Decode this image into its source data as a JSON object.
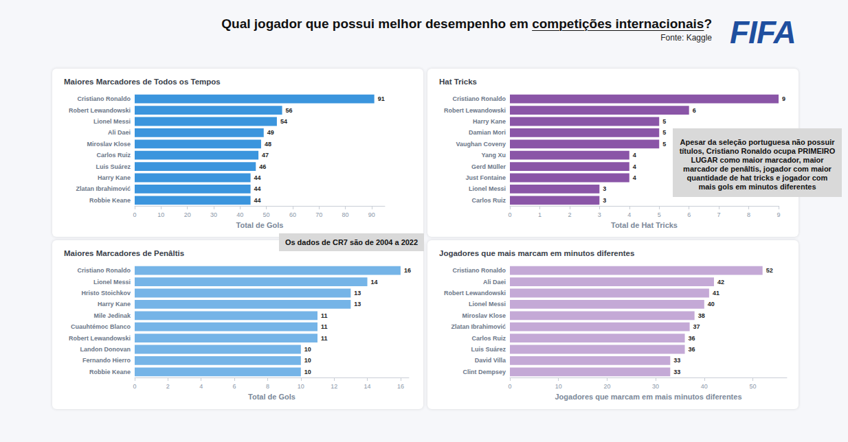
{
  "header": {
    "title": "Qual jogador que possui melhor desempenho em competições internacionais?",
    "underline": "competições internacionais",
    "source": "Fonte: Kaggle",
    "logo": "FIFA"
  },
  "chart_data": [
    {
      "type": "bar",
      "orientation": "horizontal",
      "title": "Maiores Marcadores de Todos os Tempos",
      "x_label": "Total de Gols",
      "categories": [
        "Cristiano Ronaldo",
        "Robert Lewandowski",
        "Lionel Messi",
        "Ali Daei",
        "Miroslav Klose",
        "Carlos Ruiz",
        "Luis Suárez",
        "Harry Kane",
        "Zlatan Ibrahimović",
        "Robbie Keane"
      ],
      "values": [
        91,
        56,
        54,
        49,
        48,
        47,
        46,
        44,
        44,
        44
      ],
      "color": "#3b95dd",
      "xlim": [
        0,
        95
      ],
      "xticks": [
        0,
        10,
        20,
        30,
        40,
        50,
        60,
        70,
        80,
        90
      ],
      "grid": false,
      "data_labels": true,
      "annotations": [
        "Os dados de CR7 são de 2004 a 2022"
      ]
    },
    {
      "type": "bar",
      "orientation": "horizontal",
      "title": "Hat Tricks",
      "x_label": "Total de Hat Tricks",
      "categories": [
        "Cristiano Ronaldo",
        "Robert Lewandowski",
        "Harry Kane",
        "Damian Mori",
        "Vaughan Coveny",
        "Yang Xu",
        "Gerd Müller",
        "Just Fontaine",
        "Lionel Messi",
        "Carlos Ruiz"
      ],
      "values": [
        9,
        6,
        5,
        5,
        5,
        4,
        4,
        4,
        3,
        3
      ],
      "color": "#8a55a7",
      "xlim": [
        0,
        9
      ],
      "xticks": [
        0,
        1,
        2,
        3,
        4,
        5,
        6,
        7,
        8,
        9
      ],
      "grid": false,
      "data_labels": true,
      "annotations": [
        "Apesar da seleção portuguesa não possuir títulos, Cristiano Ronaldo ocupa PRIMEIRO LUGAR como maior marcador, maior marcador de penâltis, jogador com maior quantidade de hat tricks e jogador com mais gols em minutos diferentes"
      ]
    },
    {
      "type": "bar",
      "orientation": "horizontal",
      "title": "Maiores Marcadores de Penâltis",
      "x_label": "Total de Gols",
      "categories": [
        "Cristiano Ronaldo",
        "Lionel Messi",
        "Hristo Stoichkov",
        "Harry Kane",
        "Mile Jedinak",
        "Cuauhtémoc Blanco",
        "Robert Lewandowski",
        "Landon Donovan",
        "Fernando Hierro",
        "Robbie Keane"
      ],
      "values": [
        16,
        14,
        13,
        13,
        11,
        11,
        11,
        10,
        10,
        10
      ],
      "color": "#75b4e7",
      "xlim": [
        0,
        16.5
      ],
      "xticks": [
        0,
        2,
        4,
        6,
        8,
        10,
        12,
        14,
        16
      ],
      "grid": false,
      "data_labels": true
    },
    {
      "type": "bar",
      "orientation": "horizontal",
      "title": "Jogadores que mais marcam em minutos diferentes",
      "x_label": "Jogadores que marcam em mais minutos diferentes",
      "categories": [
        "Cristiano Ronaldo",
        "Ali Daei",
        "Robert Lewandowski",
        "Lionel Messi",
        "Miroslav Klose",
        "Zlatan Ibrahimović",
        "Carlos Ruiz",
        "Luis Suárez",
        "David Villa",
        "Clint Dempsey"
      ],
      "values": [
        52,
        42,
        41,
        40,
        38,
        37,
        36,
        36,
        33,
        33
      ],
      "color": "#c4a9d6",
      "xlim": [
        0,
        57
      ],
      "xticks": [
        0,
        10,
        20,
        30,
        40,
        50
      ],
      "grid": false,
      "data_labels": true
    }
  ]
}
